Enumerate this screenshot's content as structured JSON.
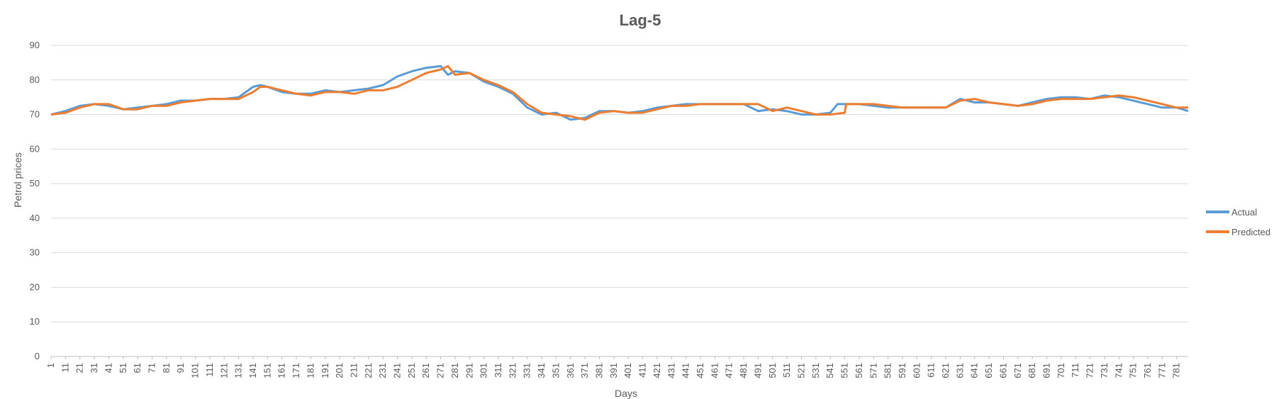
{
  "chart_data": {
    "type": "line",
    "title": "Lag-5",
    "xlabel": "Days",
    "ylabel": "Petrol prices",
    "ylim": [
      0,
      90
    ],
    "xlim": [
      1,
      789
    ],
    "y_ticks": [
      0,
      10,
      20,
      30,
      40,
      50,
      60,
      70,
      80,
      90
    ],
    "x_ticks": [
      1,
      11,
      21,
      31,
      41,
      51,
      61,
      71,
      81,
      91,
      101,
      111,
      121,
      131,
      141,
      151,
      161,
      171,
      181,
      191,
      201,
      211,
      221,
      231,
      241,
      251,
      261,
      271,
      281,
      291,
      301,
      311,
      321,
      331,
      341,
      351,
      361,
      371,
      381,
      391,
      401,
      411,
      421,
      431,
      441,
      451,
      461,
      471,
      481,
      491,
      501,
      511,
      521,
      531,
      541,
      551,
      561,
      571,
      581,
      591,
      601,
      611,
      621,
      631,
      641,
      651,
      661,
      671,
      681,
      691,
      701,
      711,
      721,
      731,
      741,
      751,
      761,
      771,
      781
    ],
    "grid": "horizontal",
    "legend_position": "right",
    "series": [
      {
        "name": "Actual",
        "color": "#5B9BD5",
        "x": [
          1,
          11,
          21,
          31,
          41,
          51,
          61,
          71,
          81,
          91,
          101,
          111,
          121,
          131,
          141,
          146,
          151,
          161,
          171,
          181,
          191,
          201,
          211,
          221,
          231,
          241,
          251,
          261,
          271,
          276,
          281,
          291,
          301,
          311,
          321,
          331,
          341,
          351,
          361,
          371,
          381,
          391,
          401,
          411,
          421,
          431,
          441,
          451,
          461,
          471,
          481,
          491,
          501,
          511,
          521,
          531,
          541,
          546,
          551,
          561,
          571,
          581,
          591,
          601,
          611,
          621,
          631,
          641,
          651,
          661,
          671,
          681,
          691,
          701,
          711,
          721,
          731,
          741,
          751,
          761,
          771,
          781,
          789
        ],
        "values": [
          70,
          71,
          72.5,
          73,
          72.5,
          71.5,
          72,
          72.5,
          73,
          74,
          74,
          74.5,
          74.5,
          75,
          78,
          78.5,
          78,
          76.5,
          76,
          76,
          77,
          76.5,
          77,
          77.5,
          78.5,
          81,
          82.5,
          83.5,
          84,
          81.5,
          82.5,
          82,
          79.5,
          78,
          76,
          72,
          70,
          70.5,
          68.5,
          69,
          71,
          71,
          70.5,
          71,
          72,
          72.5,
          73,
          73,
          73,
          73,
          73,
          71,
          71.5,
          71,
          70,
          70,
          70.5,
          73,
          73,
          73,
          72.5,
          72,
          72,
          72,
          72,
          72,
          74.5,
          73.5,
          73.5,
          73,
          72.5,
          73.5,
          74.5,
          75,
          75,
          74.5,
          75.5,
          75,
          74,
          73,
          72,
          72,
          71
        ]
      },
      {
        "name": "Predicted",
        "color": "#ED7D31",
        "x": [
          1,
          11,
          21,
          31,
          41,
          51,
          61,
          71,
          81,
          91,
          101,
          111,
          121,
          131,
          141,
          146,
          151,
          161,
          171,
          181,
          191,
          201,
          211,
          221,
          231,
          241,
          251,
          261,
          271,
          276,
          281,
          291,
          301,
          311,
          321,
          331,
          341,
          351,
          361,
          371,
          381,
          391,
          401,
          411,
          421,
          431,
          441,
          451,
          461,
          471,
          481,
          491,
          501,
          511,
          521,
          531,
          541,
          551,
          552,
          561,
          571,
          581,
          591,
          601,
          611,
          621,
          631,
          641,
          651,
          661,
          671,
          681,
          691,
          701,
          711,
          721,
          731,
          741,
          751,
          761,
          771,
          781,
          789
        ],
        "values": [
          70,
          70.5,
          72,
          73,
          73,
          71.5,
          71.5,
          72.5,
          72.5,
          73.5,
          74,
          74.5,
          74.5,
          74.5,
          76.5,
          78,
          78,
          77,
          76,
          75.5,
          76.5,
          76.5,
          76,
          77,
          77,
          78,
          80,
          82,
          83,
          84,
          81.5,
          82,
          80,
          78.5,
          76.5,
          73,
          70.5,
          70,
          69.5,
          68.5,
          70.5,
          71,
          70.5,
          70.5,
          71.5,
          72.5,
          72.5,
          73,
          73,
          73,
          73,
          73,
          71,
          72,
          71,
          70,
          70,
          70.5,
          73,
          73,
          73,
          72.5,
          72,
          72,
          72,
          72,
          74,
          74.5,
          73.5,
          73,
          72.5,
          73,
          74,
          74.5,
          74.5,
          74.5,
          75,
          75.5,
          75,
          74,
          73,
          72,
          72
        ]
      }
    ]
  }
}
